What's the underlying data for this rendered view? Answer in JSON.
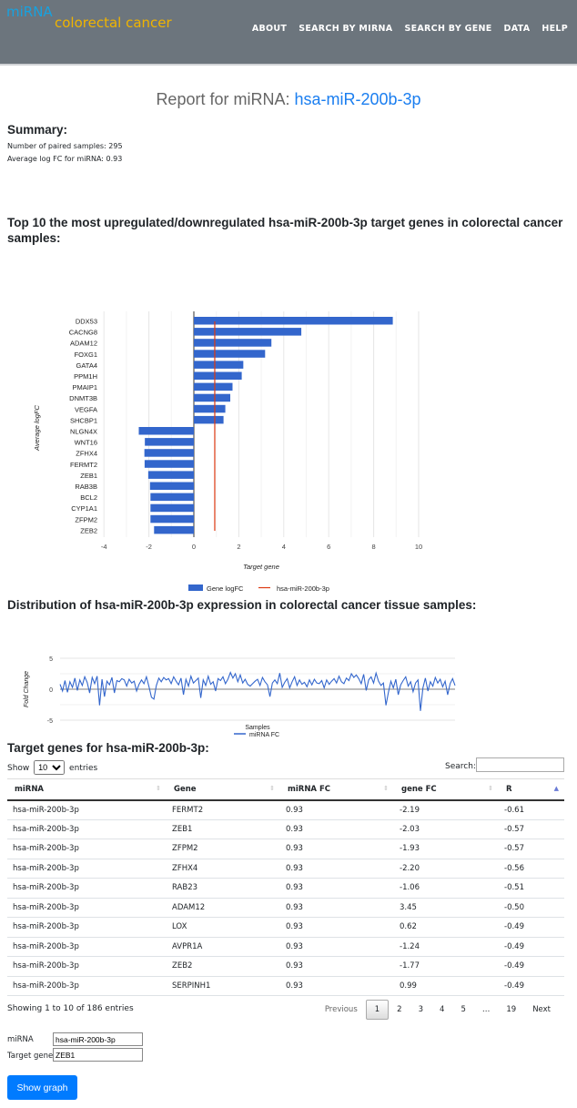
{
  "header": {
    "logo_top": "miRNA",
    "logo_bottom": "colorectal cancer",
    "nav": [
      "ABOUT",
      "SEARCH BY MIRNA",
      "SEARCH BY GENE",
      "DATA",
      "HELP"
    ]
  },
  "report": {
    "prefix": "Report for miRNA: ",
    "mirna": "hsa-miR-200b-3p"
  },
  "summary": {
    "heading": "Summary:",
    "paired": "Number of paired samples: 295",
    "avg": "Average log FC for miRNA: 0.93"
  },
  "chart_heading": "Top 10 the most upregulated/downregulated hsa-miR-200b-3p target genes in colorectal cancer samples:",
  "dist_heading": "Distribution of hsa-miR-200b-3p expression in colorectal cancer tissue samples:",
  "chart_data": [
    {
      "type": "bar",
      "orientation": "horizontal",
      "xlabel": "Target gene",
      "ylabel": "Average logFC",
      "xlim": [
        -4,
        10
      ],
      "xticks": [
        -4,
        -2,
        0,
        2,
        4,
        6,
        8,
        10
      ],
      "categories": [
        "DDX53",
        "CACNG8",
        "ADAM12",
        "FOXG1",
        "GATA4",
        "PPM1H",
        "PMAIP1",
        "DNMT3B",
        "VEGFA",
        "SHCBP1",
        "NLGN4X",
        "WNT16",
        "ZFHX4",
        "FERMT2",
        "ZEB1",
        "RAB3B",
        "BCL2",
        "CYP1A1",
        "ZFPM2",
        "ZEB2"
      ],
      "series": [
        {
          "name": "Gene logFC",
          "color": "#3366cc",
          "values": [
            8.85,
            4.78,
            3.45,
            3.17,
            2.2,
            2.13,
            1.72,
            1.62,
            1.4,
            1.32,
            -2.45,
            -2.18,
            -2.2,
            -2.19,
            -2.03,
            -1.95,
            -1.93,
            -1.93,
            -1.93,
            -1.77
          ]
        },
        {
          "name": "hsa-miR-200b-3p",
          "color": "#dc3912",
          "type": "line",
          "value": 0.93
        }
      ],
      "legend": "bottom"
    },
    {
      "type": "line",
      "xlabel": "Samples",
      "ylabel": "Fold Change",
      "ylim": [
        -5,
        5
      ],
      "yticks": [
        -5,
        0,
        5
      ],
      "legend": "bottom",
      "series": [
        {
          "name": "miRNA FC",
          "color": "#3366cc",
          "values": [
            0.8,
            -0.3,
            1.4,
            -0.5,
            1.2,
            0.3,
            1.8,
            -0.2,
            1.5,
            0.6,
            2.0,
            1.1,
            -0.6,
            1.9,
            0.9,
            2.1,
            -2.6,
            1.6,
            -1.2,
            1.3,
            0.7,
            1.9,
            -0.6,
            1.4,
            1.2,
            1.7,
            1.5,
            0.5,
            1.6,
            1.0,
            1.3,
            -0.3,
            0.8,
            1.5,
            0.9,
            2.0,
            0.4,
            -1.3,
            -1.6,
            0.6,
            1.8,
            1.2,
            1.9,
            1.5,
            1.7,
            0.9,
            2.0,
            1.3,
            0.7,
            1.8,
            -0.9,
            1.6,
            0.5,
            2.1,
            1.0,
            1.4,
            1.8,
            -1.4,
            1.5,
            0.6,
            2.1,
            0.8,
            1.2,
            -0.3,
            1.7,
            1.4,
            2.0,
            0.9,
            1.6,
            2.7,
            1.8,
            2.5,
            1.2,
            2.3,
            1.0,
            1.6,
            0.8,
            0.5,
            0.9,
            1.3,
            1.6,
            0.6,
            1.9,
            1.2,
            0.7,
            -1.2,
            1.0,
            1.5,
            0.9,
            2.6,
            0.3,
            1.1,
            1.7,
            0.2,
            1.2,
            2.0,
            0.6,
            1.5,
            0.8,
            1.1,
            0.4,
            1.5,
            0.7,
            1.6,
            1.0,
            0.9,
            1.4,
            0.2,
            1.5,
            0.8,
            1.3,
            1.7,
            1.0,
            2.1,
            1.2,
            0.9,
            1.8,
            1.4,
            2.5,
            1.9,
            2.3,
            1.7,
            0.9,
            2.4,
            -0.2,
            1.5,
            2.0,
            1.0,
            2.6,
            1.3,
            0.6,
            1.0,
            -2.6,
            -0.5,
            1.3,
            0.2,
            1.6,
            -0.9,
            0.7,
            1.4,
            2.0,
            0.5,
            1.2,
            -0.4,
            1.0,
            1.5,
            -3.5,
            0.2,
            1.8,
            -0.3,
            1.2,
            0.5,
            1.9,
            1.0,
            1.6,
            0.4,
            1.3,
            -0.9,
            0.9,
            1.7,
            0.6
          ]
        }
      ]
    }
  ],
  "table": {
    "heading": "Target genes for hsa-miR-200b-3p:",
    "show": "Show",
    "entries": "entries",
    "length": "10",
    "search_label": "Search:",
    "search_value": "",
    "columns": [
      "miRNA",
      "Gene",
      "miRNA FC",
      "gene FC",
      "R"
    ],
    "rows": [
      [
        "hsa-miR-200b-3p",
        "FERMT2",
        "0.93",
        "-2.19",
        "-0.61"
      ],
      [
        "hsa-miR-200b-3p",
        "ZEB1",
        "0.93",
        "-2.03",
        "-0.57"
      ],
      [
        "hsa-miR-200b-3p",
        "ZFPM2",
        "0.93",
        "-1.93",
        "-0.57"
      ],
      [
        "hsa-miR-200b-3p",
        "ZFHX4",
        "0.93",
        "-2.20",
        "-0.56"
      ],
      [
        "hsa-miR-200b-3p",
        "RAB23",
        "0.93",
        "-1.06",
        "-0.51"
      ],
      [
        "hsa-miR-200b-3p",
        "ADAM12",
        "0.93",
        "3.45",
        "-0.50"
      ],
      [
        "hsa-miR-200b-3p",
        "LOX",
        "0.93",
        "0.62",
        "-0.49"
      ],
      [
        "hsa-miR-200b-3p",
        "AVPR1A",
        "0.93",
        "-1.24",
        "-0.49"
      ],
      [
        "hsa-miR-200b-3p",
        "ZEB2",
        "0.93",
        "-1.77",
        "-0.49"
      ],
      [
        "hsa-miR-200b-3p",
        "SERPINH1",
        "0.93",
        "0.99",
        "-0.49"
      ]
    ],
    "info": "Showing 1 to 10 of 186 entries",
    "pager": [
      "Previous",
      "1",
      "2",
      "3",
      "4",
      "5",
      "…",
      "19",
      "Next"
    ]
  },
  "form": {
    "mirna_label": "miRNA",
    "mirna_value": "hsa-miR-200b-3p",
    "gene_label": "Target gene",
    "gene_value": "ZEB1",
    "button": "Show graph"
  }
}
